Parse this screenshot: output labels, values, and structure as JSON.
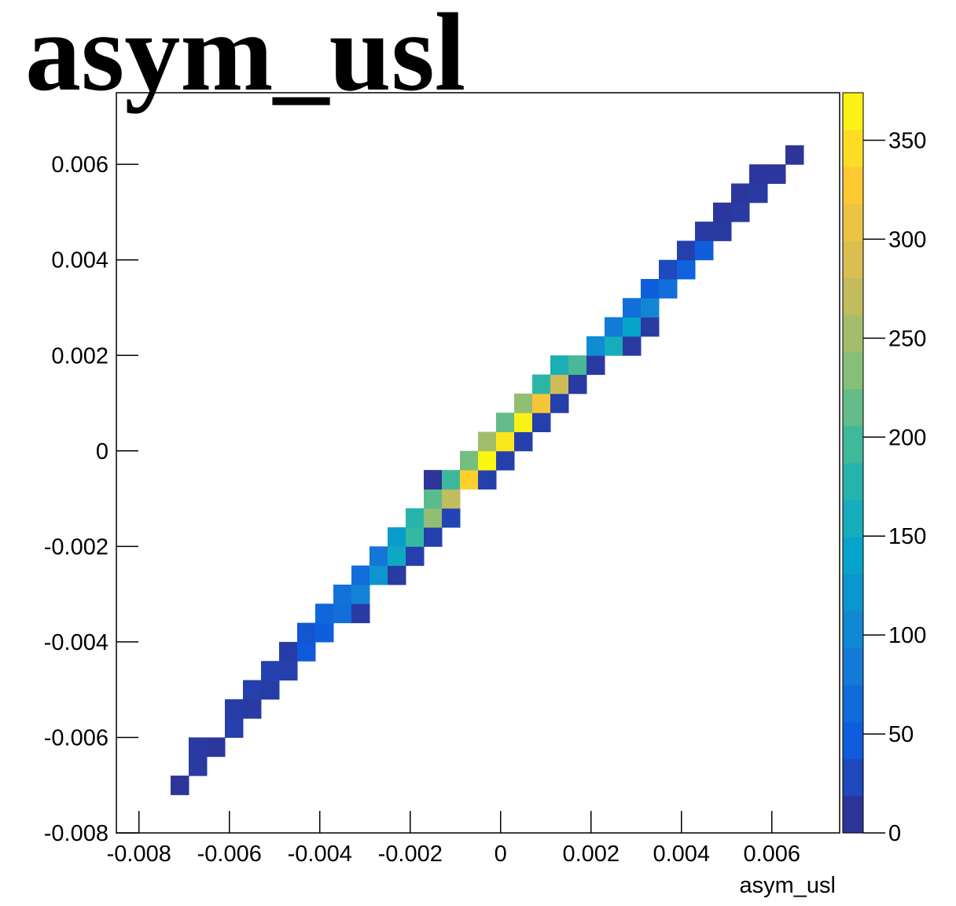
{
  "chart_data": {
    "type": "heatmap",
    "title": "asym_usl",
    "x_label": "asym_usl",
    "xlim": [
      -0.0085,
      0.0075
    ],
    "ylim": [
      -0.008,
      0.0075
    ],
    "zlim": [
      0,
      374
    ],
    "xticks": [
      -0.008,
      -0.006,
      -0.004,
      -0.002,
      0,
      0.002,
      0.004,
      0.006
    ],
    "yticks": [
      -0.008,
      -0.006,
      -0.004,
      -0.002,
      0,
      0.002,
      0.004,
      0.006
    ],
    "zticks": [
      0,
      50,
      100,
      150,
      200,
      250,
      300,
      350
    ],
    "palette": [
      "#352a87",
      "#0f5cdd",
      "#1481d6",
      "#06a4ca",
      "#2eb7a4",
      "#87bf77",
      "#d1bb59",
      "#fec832",
      "#f9fb0e"
    ],
    "x": [
      -0.0071,
      -0.0067,
      -0.0067,
      -0.0063,
      -0.0059,
      -0.0059,
      -0.0055,
      -0.0055,
      -0.0051,
      -0.0051,
      -0.0047,
      -0.0047,
      -0.0043,
      -0.0043,
      -0.0039,
      -0.0039,
      -0.0035,
      -0.0031,
      -0.0035,
      -0.0031,
      -0.0031,
      -0.0027,
      -0.0023,
      -0.0027,
      -0.0023,
      -0.0019,
      -0.0023,
      -0.0019,
      -0.0015,
      -0.0019,
      -0.0015,
      -0.0011,
      -0.0015,
      -0.0011,
      -0.0015,
      -0.0011,
      -0.0007,
      -0.0003,
      -0.0007,
      -0.0003,
      0.0001,
      -0.0003,
      0.0001,
      0.0005,
      0.0001,
      0.0005,
      0.0009,
      0.0005,
      0.0009,
      0.0013,
      0.0009,
      0.0013,
      0.0017,
      0.0013,
      0.0017,
      0.0021,
      0.0021,
      0.0025,
      0.0029,
      0.0025,
      0.0029,
      0.0033,
      0.0029,
      0.0033,
      0.0033,
      0.0037,
      0.0037,
      0.0041,
      0.0041,
      0.0045,
      0.0045,
      0.0049,
      0.0049,
      0.0053,
      0.0053,
      0.0057,
      0.0057,
      0.0061,
      0.0065
    ],
    "y": [
      -0.007,
      -0.0066,
      -0.0062,
      -0.0062,
      -0.0058,
      -0.0054,
      -0.0054,
      -0.005,
      -0.005,
      -0.0046,
      -0.0046,
      -0.0042,
      -0.0042,
      -0.0038,
      -0.0038,
      -0.0034,
      -0.0034,
      -0.0034,
      -0.003,
      -0.003,
      -0.0026,
      -0.0026,
      -0.0026,
      -0.0022,
      -0.0022,
      -0.0022,
      -0.0018,
      -0.0018,
      -0.0018,
      -0.0014,
      -0.0014,
      -0.0014,
      -0.001,
      -0.001,
      -0.0006,
      -0.0006,
      -0.0006,
      -0.0006,
      -0.0002,
      -0.0002,
      -0.0002,
      0.0002,
      0.0002,
      0.0002,
      0.0006,
      0.0006,
      0.0006,
      0.001,
      0.001,
      0.001,
      0.0014,
      0.0014,
      0.0014,
      0.0018,
      0.0018,
      0.0018,
      0.0022,
      0.0022,
      0.0022,
      0.0026,
      0.0026,
      0.0026,
      0.003,
      0.003,
      0.0034,
      0.0034,
      0.0038,
      0.0038,
      0.0042,
      0.0042,
      0.0046,
      0.0046,
      0.005,
      0.005,
      0.0054,
      0.0054,
      0.0058,
      0.0058,
      0.0062
    ],
    "values": [
      10,
      15,
      15,
      12,
      20,
      18,
      15,
      20,
      18,
      22,
      20,
      18,
      45,
      40,
      50,
      60,
      70,
      15,
      75,
      95,
      70,
      120,
      15,
      80,
      150,
      20,
      130,
      190,
      20,
      180,
      240,
      25,
      210,
      270,
      10,
      195,
      335,
      20,
      225,
      370,
      20,
      250,
      355,
      20,
      215,
      365,
      20,
      240,
      320,
      20,
      185,
      280,
      15,
      165,
      200,
      15,
      110,
      160,
      15,
      85,
      140,
      15,
      70,
      100,
      50,
      70,
      30,
      55,
      20,
      50,
      15,
      15,
      12,
      15,
      12,
      15,
      12,
      12,
      10
    ]
  }
}
